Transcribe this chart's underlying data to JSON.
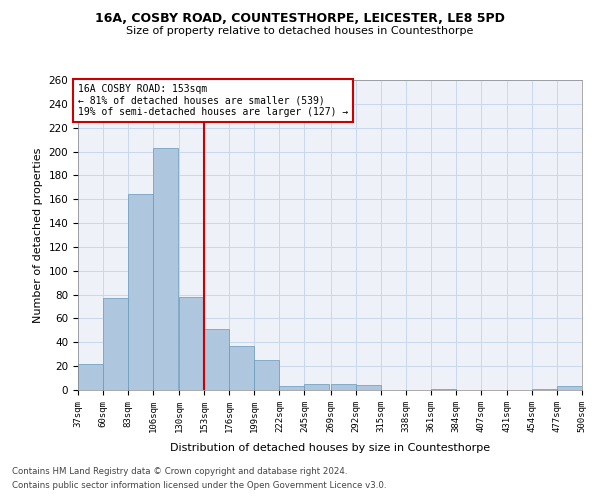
{
  "title1": "16A, COSBY ROAD, COUNTESTHORPE, LEICESTER, LE8 5PD",
  "title2": "Size of property relative to detached houses in Countesthorpe",
  "xlabel": "Distribution of detached houses by size in Countesthorpe",
  "ylabel": "Number of detached properties",
  "footnote1": "Contains HM Land Registry data © Crown copyright and database right 2024.",
  "footnote2": "Contains public sector information licensed under the Open Government Licence v3.0.",
  "bar_color": "#aec6de",
  "bar_edge_color": "#6699bb",
  "grid_color": "#c8d8ec",
  "background_color": "#eef2f8",
  "vline_x": 153,
  "vline_color": "#cc0000",
  "annotation_text": "16A COSBY ROAD: 153sqm\n← 81% of detached houses are smaller (539)\n19% of semi-detached houses are larger (127) →",
  "annotation_box_color": "#cc0000",
  "bins": [
    37,
    60,
    83,
    106,
    130,
    153,
    176,
    199,
    222,
    245,
    269,
    292,
    315,
    338,
    361,
    384,
    407,
    431,
    454,
    477,
    500
  ],
  "bin_labels": [
    "37sqm",
    "60sqm",
    "83sqm",
    "106sqm",
    "130sqm",
    "153sqm",
    "176sqm",
    "199sqm",
    "222sqm",
    "245sqm",
    "269sqm",
    "292sqm",
    "315sqm",
    "338sqm",
    "361sqm",
    "384sqm",
    "407sqm",
    "431sqm",
    "454sqm",
    "477sqm",
    "500sqm"
  ],
  "counts": [
    22,
    77,
    164,
    203,
    78,
    51,
    37,
    25,
    3,
    5,
    5,
    4,
    0,
    0,
    1,
    0,
    0,
    0,
    1,
    3
  ],
  "ylim": [
    0,
    260
  ],
  "yticks": [
    0,
    20,
    40,
    60,
    80,
    100,
    120,
    140,
    160,
    180,
    200,
    220,
    240,
    260
  ]
}
